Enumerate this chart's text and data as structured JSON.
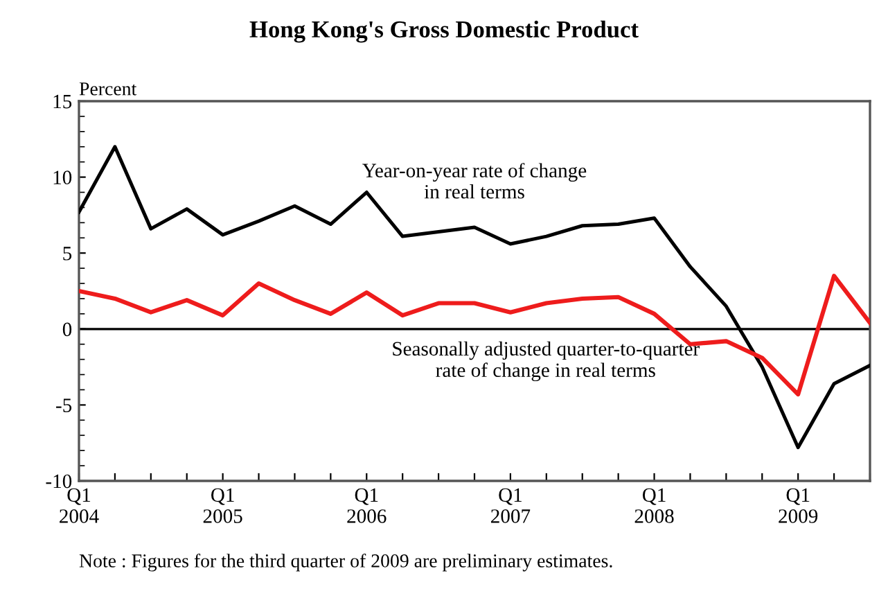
{
  "chart_data": {
    "type": "line",
    "title": "Hong Kong's Gross Domestic Product",
    "ylabel": "Percent",
    "categories": [
      "Q1\n2004",
      null,
      null,
      null,
      "Q1\n2005",
      null,
      null,
      null,
      "Q1\n2006",
      null,
      null,
      null,
      "Q1\n2007",
      null,
      null,
      null,
      "Q1\n2008",
      null,
      null,
      null,
      "Q1\n2009",
      null,
      null
    ],
    "series": [
      {
        "name": "Year-on-year rate of change\nin real terms",
        "color": "#000000",
        "values": [
          7.7,
          12.0,
          6.6,
          7.9,
          6.2,
          7.1,
          8.1,
          6.9,
          9.0,
          6.1,
          6.4,
          6.7,
          5.6,
          6.1,
          6.8,
          6.9,
          7.3,
          4.1,
          1.5,
          -2.5,
          -7.8,
          -3.6,
          -2.4
        ]
      },
      {
        "name": "Seasonally adjusted quarter-to-quarter\nrate of change in real terms",
        "color": "#ee1c1c",
        "values": [
          2.5,
          2.0,
          1.1,
          1.9,
          0.9,
          3.0,
          1.9,
          1.0,
          2.4,
          0.9,
          1.7,
          1.7,
          1.1,
          1.7,
          2.0,
          2.1,
          1.0,
          -1.0,
          -0.8,
          -1.9,
          -4.3,
          3.5,
          0.4
        ]
      }
    ],
    "ylim": [
      -10,
      15
    ],
    "yticks": [
      -10,
      -5,
      0,
      5,
      10,
      15
    ],
    "ref_lines": [
      {
        "axis": "y",
        "value": 0,
        "color": "#000000"
      }
    ],
    "annotations": [
      "Note : Figures for the third quarter of 2009 are preliminary estimates."
    ],
    "grid": false,
    "legend": false,
    "marker": "none",
    "line_style": "solid"
  }
}
